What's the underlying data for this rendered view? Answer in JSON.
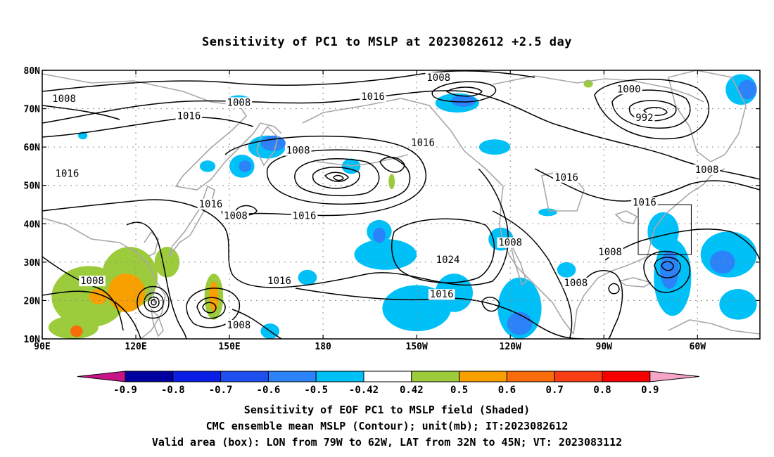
{
  "title": "Sensitivity of PC1 to MSLP at 2023082612 +2.5 day",
  "captions": {
    "line1": "Sensitivity of EOF PC1 to MSLP field (Shaded)",
    "line2": "CMC ensemble mean MSLP (Contour); unit(mb); IT:2023082612",
    "line3": "Valid area (box): LON from 79W to 62W, LAT from 32N to 45N; VT: 2023083112"
  },
  "map": {
    "lon_range": [
      90,
      320
    ],
    "lat_range": [
      10,
      80
    ],
    "lat_ticks": [
      {
        "value": 80,
        "label": "80N"
      },
      {
        "value": 70,
        "label": "70N"
      },
      {
        "value": 60,
        "label": "60N"
      },
      {
        "value": 50,
        "label": "50N"
      },
      {
        "value": 40,
        "label": "40N"
      },
      {
        "value": 30,
        "label": "30N"
      },
      {
        "value": 20,
        "label": "20N"
      },
      {
        "value": 10,
        "label": "10N"
      }
    ],
    "lon_ticks": [
      {
        "value": 90,
        "label": "90E"
      },
      {
        "value": 120,
        "label": "120E"
      },
      {
        "value": 150,
        "label": "150E"
      },
      {
        "value": 180,
        "label": "180"
      },
      {
        "value": 210,
        "label": "150W"
      },
      {
        "value": 240,
        "label": "120W"
      },
      {
        "value": 270,
        "label": "90W"
      },
      {
        "value": 300,
        "label": "60W"
      }
    ],
    "valid_box": {
      "lon_min": 281,
      "lon_max": 298,
      "lat_min": 32,
      "lat_max": 45
    },
    "contour_color": "#000000",
    "coast_color": "#a8a8a8",
    "grid_color": "#8c8c8c"
  },
  "colorbar": {
    "labels": [
      "-0.9",
      "-0.8",
      "-0.7",
      "-0.6",
      "-0.5",
      "-0.42",
      "0.42",
      "0.5",
      "0.6",
      "0.7",
      "0.8",
      "0.9"
    ],
    "low_end_color": "#c71585",
    "high_end_color": "#f4a6c8",
    "colors": [
      "#0000a0",
      "#0a1ee6",
      "#1e50f0",
      "#2c82f8",
      "#00c0f8",
      "#ffffff",
      "#9ccc3c",
      "#f8a000",
      "#f86c0a",
      "#f83c14",
      "#f80000"
    ]
  },
  "shading": {
    "colors": {
      "blue_dark": "#1e3ee8",
      "blue_mid": "#2c82f8",
      "blue_light": "#00c0f8",
      "green": "#9ccc3c",
      "orange": "#f8a000",
      "orange_dark": "#f86c0a"
    },
    "blobs": [
      {
        "c": "blue_light",
        "lon": 314,
        "lat": 75,
        "rx": 5,
        "ry": 4
      },
      {
        "c": "blue_mid",
        "lon": 316,
        "lat": 75,
        "rx": 3,
        "ry": 2.5
      },
      {
        "c": "blue_light",
        "lon": 223,
        "lat": 71.5,
        "rx": 7,
        "ry": 2.5
      },
      {
        "c": "blue_mid",
        "lon": 225,
        "lat": 72,
        "rx": 4,
        "ry": 1.5
      },
      {
        "c": "blue_light",
        "lon": 235,
        "lat": 60,
        "rx": 5,
        "ry": 2
      },
      {
        "c": "blue_light",
        "lon": 162,
        "lat": 60,
        "rx": 6,
        "ry": 3
      },
      {
        "c": "blue_mid",
        "lon": 164,
        "lat": 61,
        "rx": 4,
        "ry": 2
      },
      {
        "c": "blue_light",
        "lon": 154,
        "lat": 55,
        "rx": 4,
        "ry": 3
      },
      {
        "c": "blue_mid",
        "lon": 155,
        "lat": 55,
        "rx": 2,
        "ry": 1.5
      },
      {
        "c": "blue_light",
        "lon": 189,
        "lat": 55,
        "rx": 3,
        "ry": 2
      },
      {
        "c": "blue_light",
        "lon": 143,
        "lat": 55,
        "rx": 2.5,
        "ry": 1.5
      },
      {
        "c": "blue_light",
        "lon": 103,
        "lat": 63,
        "rx": 1.5,
        "ry": 1
      },
      {
        "c": "blue_light",
        "lon": 153,
        "lat": 72,
        "rx": 4,
        "ry": 1.5
      },
      {
        "c": "blue_light",
        "lon": 237,
        "lat": 36,
        "rx": 4,
        "ry": 3
      },
      {
        "c": "blue_light",
        "lon": 252,
        "lat": 43,
        "rx": 3,
        "ry": 1
      },
      {
        "c": "blue_light",
        "lon": 200,
        "lat": 32,
        "rx": 10,
        "ry": 4
      },
      {
        "c": "blue_light",
        "lon": 198,
        "lat": 38,
        "rx": 4,
        "ry": 3
      },
      {
        "c": "blue_mid",
        "lon": 198,
        "lat": 37,
        "rx": 2,
        "ry": 2
      },
      {
        "c": "blue_light",
        "lon": 210,
        "lat": 18,
        "rx": 11,
        "ry": 6
      },
      {
        "c": "blue_light",
        "lon": 222,
        "lat": 22,
        "rx": 6,
        "ry": 5
      },
      {
        "c": "blue_light",
        "lon": 243,
        "lat": 18,
        "rx": 7,
        "ry": 8
      },
      {
        "c": "blue_mid",
        "lon": 243,
        "lat": 14,
        "rx": 4,
        "ry": 3
      },
      {
        "c": "blue_light",
        "lon": 292,
        "lat": 26,
        "rx": 6,
        "ry": 10
      },
      {
        "c": "blue_mid",
        "lon": 291,
        "lat": 28,
        "rx": 3,
        "ry": 5
      },
      {
        "c": "blue_light",
        "lon": 289,
        "lat": 38,
        "rx": 5,
        "ry": 5
      },
      {
        "c": "blue_light",
        "lon": 310,
        "lat": 32,
        "rx": 9,
        "ry": 6
      },
      {
        "c": "blue_mid",
        "lon": 308,
        "lat": 30,
        "rx": 4,
        "ry": 3
      },
      {
        "c": "blue_light",
        "lon": 313,
        "lat": 19,
        "rx": 6,
        "ry": 4
      },
      {
        "c": "blue_light",
        "lon": 258,
        "lat": 28,
        "rx": 3,
        "ry": 2
      },
      {
        "c": "blue_light",
        "lon": 175,
        "lat": 26,
        "rx": 3,
        "ry": 2
      },
      {
        "c": "blue_light",
        "lon": 163,
        "lat": 12,
        "rx": 3,
        "ry": 2
      },
      {
        "c": "green",
        "lon": 105,
        "lat": 21,
        "rx": 12,
        "ry": 8
      },
      {
        "c": "green",
        "lon": 118,
        "lat": 26,
        "rx": 9,
        "ry": 8
      },
      {
        "c": "green",
        "lon": 130,
        "lat": 30,
        "rx": 4,
        "ry": 4
      },
      {
        "c": "green",
        "lon": 100,
        "lat": 13,
        "rx": 8,
        "ry": 3
      },
      {
        "c": "green",
        "lon": 145,
        "lat": 21,
        "rx": 3,
        "ry": 6
      },
      {
        "c": "orange",
        "lon": 117,
        "lat": 22,
        "rx": 6,
        "ry": 5
      },
      {
        "c": "orange",
        "lon": 145,
        "lat": 21,
        "rx": 1.5,
        "ry": 4
      },
      {
        "c": "orange",
        "lon": 108,
        "lat": 21,
        "rx": 3,
        "ry": 2
      },
      {
        "c": "orange_dark",
        "lon": 101,
        "lat": 12,
        "rx": 2,
        "ry": 1.5
      },
      {
        "c": "green",
        "lon": 265,
        "lat": 76.5,
        "rx": 1.5,
        "ry": 1
      },
      {
        "c": "green",
        "lon": 202,
        "lat": 51,
        "rx": 1,
        "ry": 2
      }
    ]
  },
  "contour_labels": [
    {
      "text": "1008",
      "lon": 97,
      "lat": 72.5
    },
    {
      "text": "1008",
      "lon": 153,
      "lat": 71.5
    },
    {
      "text": "1016",
      "lon": 137,
      "lat": 68
    },
    {
      "text": "1008",
      "lon": 217,
      "lat": 78
    },
    {
      "text": "1016",
      "lon": 196,
      "lat": 73
    },
    {
      "text": "1000",
      "lon": 278,
      "lat": 75
    },
    {
      "text": "992",
      "lon": 283,
      "lat": 67.5
    },
    {
      "text": "1016",
      "lon": 98,
      "lat": 53
    },
    {
      "text": "1008",
      "lon": 172,
      "lat": 59
    },
    {
      "text": "1016",
      "lon": 212,
      "lat": 61
    },
    {
      "text": "1008",
      "lon": 303,
      "lat": 54
    },
    {
      "text": "1016",
      "lon": 258,
      "lat": 52
    },
    {
      "text": "1016",
      "lon": 144,
      "lat": 45
    },
    {
      "text": "1008",
      "lon": 152,
      "lat": 42
    },
    {
      "text": "1016",
      "lon": 174,
      "lat": 42
    },
    {
      "text": "1016",
      "lon": 283,
      "lat": 45.5
    },
    {
      "text": "1008",
      "lon": 240,
      "lat": 35
    },
    {
      "text": "1008",
      "lon": 272,
      "lat": 32.5
    },
    {
      "text": "1024",
      "lon": 220,
      "lat": 30.5
    },
    {
      "text": "1016",
      "lon": 166,
      "lat": 25
    },
    {
      "text": "1008",
      "lon": 106,
      "lat": 25
    },
    {
      "text": "1016",
      "lon": 218,
      "lat": 21.5
    },
    {
      "text": "1008",
      "lon": 261,
      "lat": 24.5
    },
    {
      "text": "1008",
      "lon": 153,
      "lat": 13.5
    }
  ]
}
